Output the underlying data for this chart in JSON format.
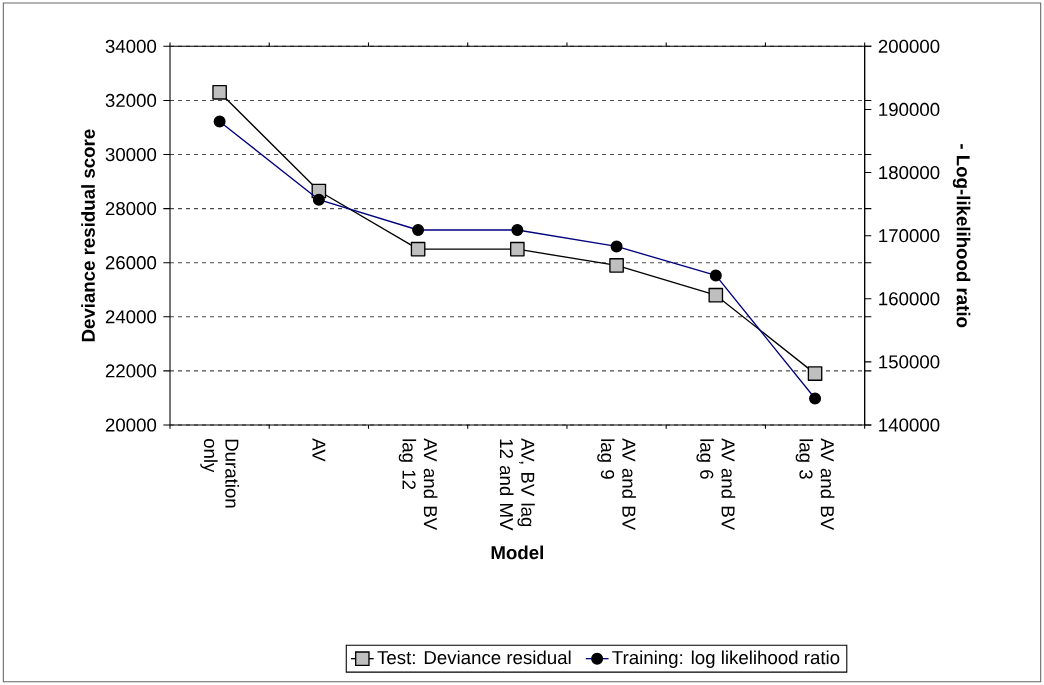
{
  "chart_data": {
    "type": "line",
    "xlabel": "Model",
    "ylabel": "Deviance residual score",
    "y2label": "- Log-likelihood ratio",
    "categories": [
      "Duration only",
      "AV",
      "AV and BV lag 12",
      "AV, BV lag 12 and MV",
      "AV and BV lag 9",
      "AV and BV lag 6",
      "AV and BV lag 3"
    ],
    "series": [
      {
        "name": "Test: Deviance residual",
        "color": "#000000",
        "marker": "square",
        "values": [
          32300,
          28650,
          26500,
          26500,
          25900,
          24800,
          21900
        ]
      },
      {
        "name": "Training: log likelihood ratio",
        "color": "#000080",
        "marker": "circle",
        "axis": "y2",
        "values": [
          188100,
          175700,
          170900,
          170900,
          168300,
          163700,
          144200
        ]
      }
    ],
    "ylim": [
      20000,
      34000
    ],
    "yticks": [
      20000,
      22000,
      24000,
      26000,
      28000,
      30000,
      32000,
      34000
    ],
    "y2lim": [
      140000,
      200000
    ],
    "y2ticks": [
      140000,
      150000,
      160000,
      170000,
      180000,
      190000,
      200000
    ],
    "grid": "y",
    "legend": "bottom"
  }
}
